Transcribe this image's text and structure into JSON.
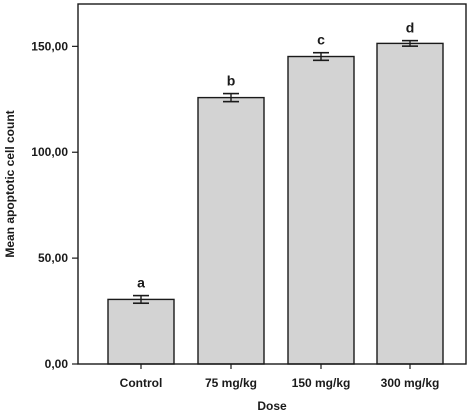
{
  "chart_data": {
    "type": "bar",
    "title": "",
    "xlabel": "Dose",
    "ylabel": "Mean apoptotic cell count",
    "categories": [
      "Control",
      "75 mg/kg",
      "150 mg/kg",
      "300 mg/kg"
    ],
    "values": [
      30.5,
      125.8,
      145.2,
      151.4
    ],
    "errors": [
      1.8,
      1.9,
      1.8,
      1.3
    ],
    "significance_labels": [
      "a",
      "b",
      "c",
      "d"
    ],
    "ylim": [
      0,
      170
    ],
    "yticks": [
      0,
      50,
      100,
      150
    ],
    "ytick_labels": [
      "0,00",
      "50,00",
      "100,00",
      "150,00"
    ],
    "grid": false,
    "legend": "none",
    "bar_color": "#d3d3d3",
    "edge_color": "#1a1a1a"
  }
}
